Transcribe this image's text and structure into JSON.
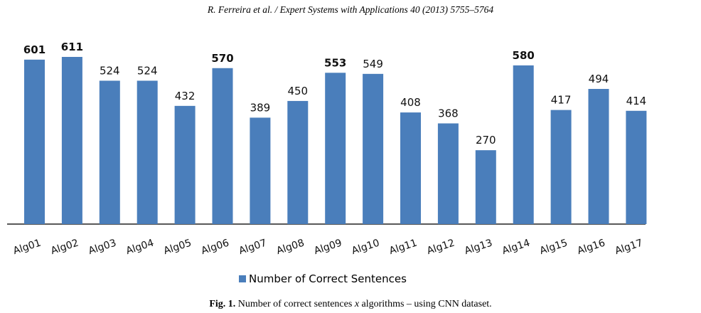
{
  "header": {
    "text": "R. Ferreira et al. / Expert Systems with Applications 40 (2013) 5755–5764"
  },
  "chart_data": {
    "type": "bar",
    "categories": [
      "Alg01",
      "Alg02",
      "Alg03",
      "Alg04",
      "Alg05",
      "Alg06",
      "Alg07",
      "Alg08",
      "Alg09",
      "Alg10",
      "Alg11",
      "Alg12",
      "Alg13",
      "Alg14",
      "Alg15",
      "Alg16",
      "Alg17"
    ],
    "series": [
      {
        "name": "Number of Correct Sentences",
        "values": [
          601,
          611,
          524,
          524,
          432,
          570,
          389,
          450,
          553,
          549,
          408,
          368,
          270,
          580,
          417,
          494,
          414
        ],
        "color": "#4a7ebb"
      }
    ],
    "bold_labels": [
      "Alg01",
      "Alg02",
      "Alg06",
      "Alg09",
      "Alg14"
    ],
    "ylim": [
      0,
      611
    ],
    "grid": false,
    "legend": "bottom",
    "title": "",
    "xlabel": "",
    "ylabel": ""
  },
  "caption": {
    "fig": "Fig. 1.",
    "text_before": "Number of correct sentences",
    "x": "x",
    "text_after": "algorithms – using CNN dataset."
  }
}
